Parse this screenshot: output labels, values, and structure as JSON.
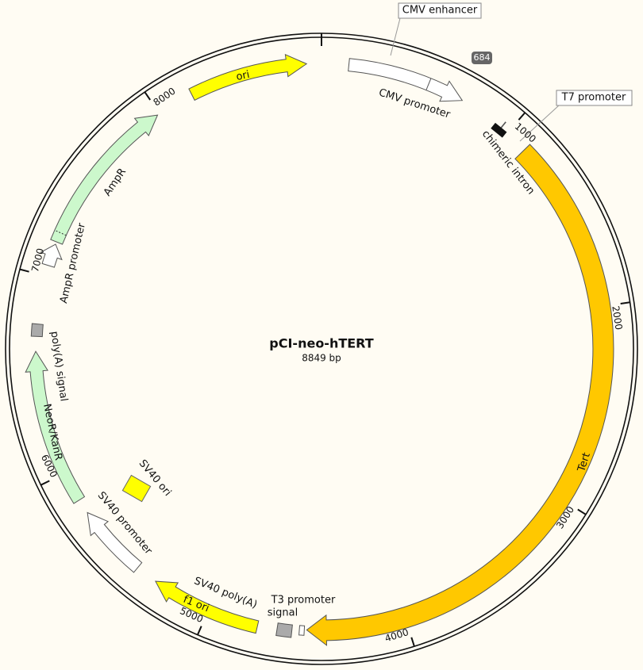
{
  "title": "pCI-neo-hTERT",
  "length": "8849 bp",
  "badge": "684",
  "ticks": [
    "1000",
    "2000",
    "3000",
    "4000",
    "5000",
    "6000",
    "7000",
    "8000"
  ],
  "features": [
    {
      "label": "CMV enhancer"
    },
    {
      "label": "CMV promoter"
    },
    {
      "label": "T7 promoter"
    },
    {
      "label": "chimeric intron"
    },
    {
      "label": "Tert"
    },
    {
      "label": "T3 promoter"
    },
    {
      "label": [
        "SV40 poly(A)",
        "signal"
      ]
    },
    {
      "label": "f1 ori"
    },
    {
      "label": "SV40 promoter"
    },
    {
      "label": "SV40 ori"
    },
    {
      "label": "NeoR/KanR"
    },
    {
      "label": "poly(A) signal"
    },
    {
      "label": "AmpR promoter"
    },
    {
      "label": "AmpR"
    },
    {
      "label": "ori"
    }
  ]
}
